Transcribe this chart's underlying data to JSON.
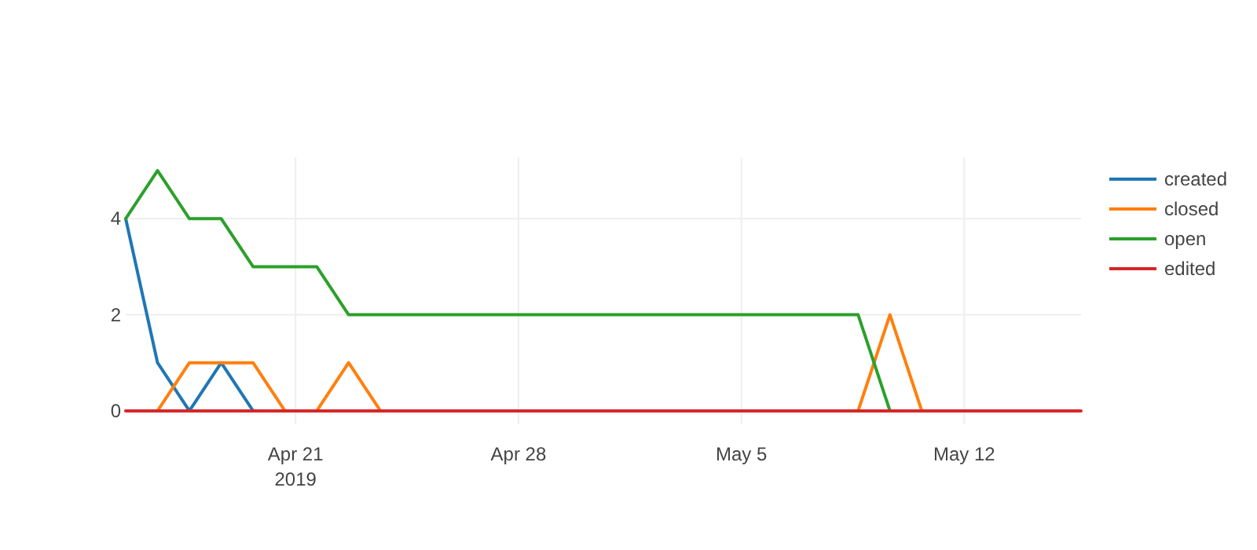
{
  "chart_data": {
    "type": "line",
    "x": [
      "2019-04-15T16:00",
      "2019-04-16T16:00",
      "2019-04-17T16:00",
      "2019-04-18T16:00",
      "2019-04-19T16:00",
      "2019-04-20T16:00",
      "2019-04-21T16:00",
      "2019-04-22T16:00",
      "2019-04-23T16:00",
      "2019-04-24T16:00",
      "2019-04-25T16:00",
      "2019-04-26T16:00",
      "2019-04-27T16:00",
      "2019-04-28T16:00",
      "2019-04-29T16:00",
      "2019-04-30T16:00",
      "2019-05-01T16:00",
      "2019-05-02T16:00",
      "2019-05-03T16:00",
      "2019-05-04T16:00",
      "2019-05-05T16:00",
      "2019-05-06T16:00",
      "2019-05-07T16:00",
      "2019-05-08T16:00",
      "2019-05-09T16:00",
      "2019-05-10T16:00",
      "2019-05-11T16:00",
      "2019-05-12T16:00",
      "2019-05-13T16:00",
      "2019-05-14T16:00",
      "2019-05-15T16:00"
    ],
    "series": [
      {
        "name": "created",
        "color": "#1f77b4",
        "values": [
          4,
          1,
          0,
          1,
          0,
          null,
          null,
          null,
          null,
          null,
          null,
          null,
          null,
          null,
          null,
          null,
          null,
          null,
          null,
          null,
          null,
          null,
          null,
          null,
          null,
          null,
          null,
          null,
          null,
          null,
          null
        ]
      },
      {
        "name": "closed",
        "color": "#ff7f0e",
        "values": [
          null,
          0,
          1,
          1,
          1,
          0,
          0,
          1,
          0,
          null,
          null,
          null,
          null,
          null,
          null,
          null,
          null,
          null,
          null,
          null,
          null,
          null,
          null,
          0,
          2,
          0,
          null,
          null,
          null,
          null,
          null
        ]
      },
      {
        "name": "open",
        "color": "#2ca02c",
        "values": [
          4,
          5,
          4,
          4,
          3,
          3,
          3,
          2,
          2,
          2,
          2,
          2,
          2,
          2,
          2,
          2,
          2,
          2,
          2,
          2,
          2,
          2,
          2,
          2,
          0,
          null,
          null,
          null,
          null,
          null,
          null
        ]
      },
      {
        "name": "edited",
        "color": "#d62728",
        "values": [
          0,
          0,
          0,
          0,
          0,
          0,
          0,
          0,
          0,
          0,
          0,
          0,
          0,
          0,
          0,
          0,
          0,
          0,
          0,
          0,
          0,
          0,
          0,
          0,
          0,
          0,
          0,
          0,
          0,
          0,
          0
        ]
      }
    ],
    "xlim": [
      "2019-04-15T16:00",
      "2019-05-15T16:00"
    ],
    "xticks": [
      {
        "value": "2019-04-21",
        "label": "Apr 21\n2019"
      },
      {
        "value": "2019-04-28",
        "label": "Apr 28"
      },
      {
        "value": "2019-05-05",
        "label": "May 5"
      },
      {
        "value": "2019-05-12",
        "label": "May 12"
      }
    ],
    "ylim": [
      -0.28,
      5.28
    ],
    "yticks": [
      0,
      2,
      4
    ],
    "grid": true,
    "legend": "top right",
    "line_style": "solid",
    "marker": "none"
  }
}
